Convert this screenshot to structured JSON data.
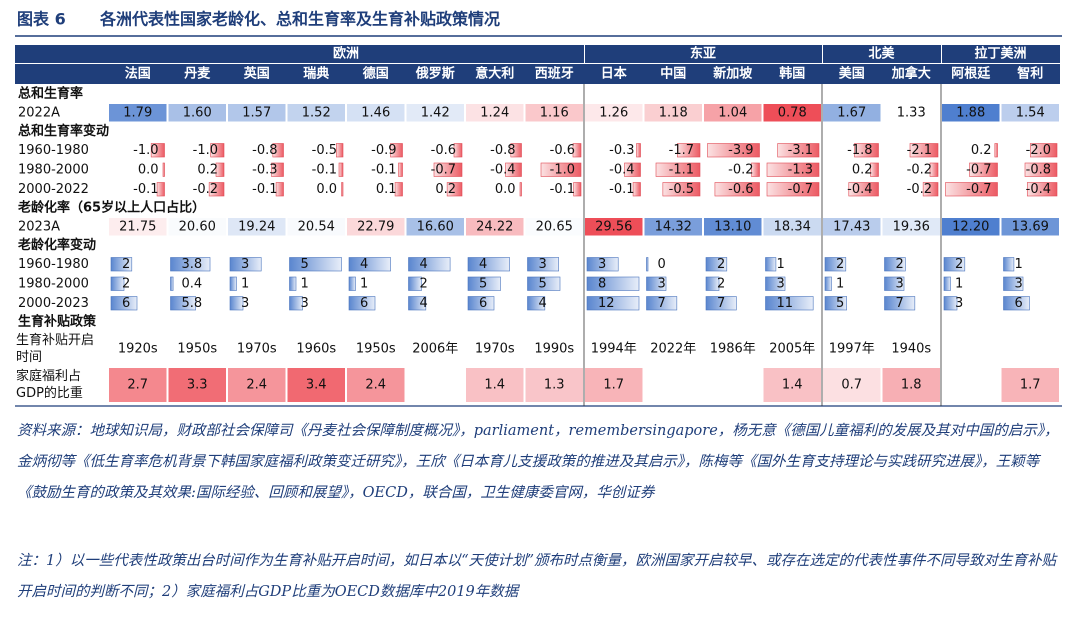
{
  "title": {
    "label": "图表 6",
    "text": "各洲代表性国家老龄化、总和生育率及生育补贴政策情况"
  },
  "regions": [
    {
      "name": "欧洲",
      "countries": [
        "法国",
        "丹麦",
        "英国",
        "瑞典",
        "德国",
        "俄罗斯",
        "意大利",
        "西班牙"
      ]
    },
    {
      "name": "东亚",
      "countries": [
        "日本",
        "中国",
        "新加坡",
        "韩国"
      ]
    },
    {
      "name": "北美",
      "countries": [
        "美国",
        "加拿大"
      ]
    },
    {
      "name": "拉丁美洲",
      "countries": [
        "阿根廷",
        "智利"
      ]
    }
  ],
  "sections": [
    {
      "title": "总和生育率",
      "rows": [
        {
          "label": "2022A",
          "values": [
            "1.79",
            "1.60",
            "1.57",
            "1.52",
            "1.46",
            "1.42",
            "1.24",
            "1.16",
            "1.26",
            "1.18",
            "1.04",
            "0.78",
            "1.67",
            "1.33",
            "1.88",
            "1.54"
          ]
        }
      ]
    },
    {
      "title": "总和生育率变动",
      "rows": [
        {
          "label": "1960-1980",
          "values": [
            "-1.0",
            "-1.0",
            "-0.8",
            "-0.5",
            "-0.9",
            "-0.6",
            "-0.8",
            "-0.6",
            "-0.3",
            "-1.7",
            "-3.9",
            "-3.1",
            "-1.8",
            "-2.1",
            "0.2",
            "-2.0"
          ]
        },
        {
          "label": "1980-2000",
          "values": [
            "0.0",
            "0.2",
            "-0.3",
            "-0.1",
            "-0.1",
            "-0.7",
            "-0.4",
            "-1.0",
            "-0.4",
            "-1.1",
            "-0.2",
            "-1.3",
            "0.2",
            "-0.2",
            "-0.7",
            "-0.8"
          ]
        },
        {
          "label": "2000-2022",
          "values": [
            "-0.1",
            "-0.2",
            "-0.1",
            "0.0",
            "0.1",
            "0.2",
            "0.0",
            "-0.1",
            "-0.1",
            "-0.5",
            "-0.6",
            "-0.7",
            "-0.4",
            "-0.2",
            "-0.7",
            "-0.4"
          ]
        }
      ]
    },
    {
      "title": "老龄化率（65岁以上人口占比）",
      "rows": [
        {
          "label": "2023A",
          "values": [
            "21.75",
            "20.60",
            "19.24",
            "20.54",
            "22.79",
            "16.60",
            "24.22",
            "20.65",
            "29.56",
            "14.32",
            "13.10",
            "18.34",
            "17.43",
            "19.36",
            "12.20",
            "13.69"
          ]
        }
      ]
    },
    {
      "title": "老龄化率变动",
      "rows": [
        {
          "label": "1960-1980",
          "values": [
            "2",
            "3.8",
            "3",
            "5",
            "4",
            "4",
            "4",
            "3",
            "3",
            "0",
            "2",
            "1",
            "2",
            "2",
            "2",
            "1"
          ]
        },
        {
          "label": "1980-2000",
          "values": [
            "2",
            "0.4",
            "1",
            "1",
            "1",
            "2",
            "5",
            "5",
            "8",
            "3",
            "2",
            "3",
            "1",
            "3",
            "1",
            "3"
          ]
        },
        {
          "label": "2000-2023",
          "values": [
            "6",
            "5.8",
            "3",
            "3",
            "6",
            "4",
            "6",
            "4",
            "12",
            "7",
            "7",
            "11",
            "5",
            "7",
            "3",
            "6"
          ]
        }
      ]
    },
    {
      "title": "生育补贴政策",
      "rows": [
        {
          "label": "生育补贴开启时间",
          "values": [
            "1920s",
            "1950s",
            "1970s",
            "1960s",
            "1950s",
            "2006年",
            "1970s",
            "1990s",
            "1994年",
            "2022年",
            "1986年",
            "2005年",
            "1997年",
            "1940s",
            null,
            null
          ]
        },
        {
          "label": "家庭福利占GDP的比重",
          "values": [
            "2.7",
            "3.3",
            "2.4",
            "3.4",
            "2.4",
            null,
            "1.4",
            "1.3",
            "1.7",
            null,
            null,
            "1.4",
            "0.7",
            "1.8",
            null,
            "1.7"
          ]
        }
      ]
    }
  ],
  "source": "资料来源：地球知识局，财政部社会保障司《丹麦社会保障制度概况》，parliament，remembersingapore，杨无意《德国儿童福利的发展及其对中国的启示》，金炳彻等《低生育率危机背景下韩国家庭福利政策变迁研究》，王欣《日本育儿支援政策的推进及其启示》，陈梅等《国外生育支持理论与实践研究进展》，王颖等《鼓励生育的政策及其效果:国际经验、回顾和展望》，OECD，联合国，卫生健康委官网，华创证券",
  "note": "注：1）以一些代表性政策出台时间作为生育补贴开启时间，如日本以“天使计划”颁布时点衡量，欧洲国家开启较早、或存在选定的代表性事件不同导致对生育补贴开启时间的判断不同；2）家庭福利占GDP比重为OECD数据库中2019年数据"
}
